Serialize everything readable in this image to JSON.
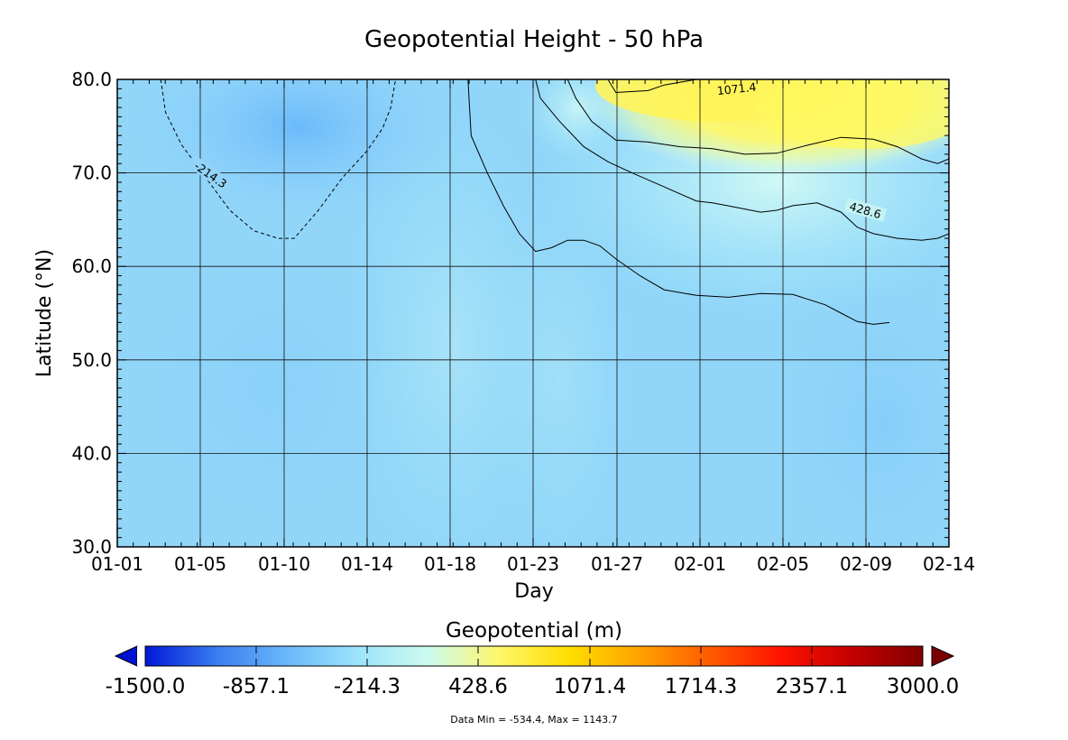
{
  "chart_data": {
    "type": "heatmap",
    "title": "Geopotential Height - 50 hPa",
    "xlabel": "Day",
    "ylabel": "Latitude (°N)",
    "x_ticks": [
      "01-01",
      "01-05",
      "01-10",
      "01-14",
      "01-18",
      "01-23",
      "01-27",
      "02-01",
      "02-05",
      "02-09",
      "02-14"
    ],
    "x_range": [
      "01-01",
      "02-14"
    ],
    "y_ticks": [
      "30.0",
      "40.0",
      "50.0",
      "60.0",
      "70.0",
      "80.0"
    ],
    "ylim": [
      30,
      80
    ],
    "grid": true,
    "colorbar": {
      "label": "Geopotential (m)",
      "min": -1500,
      "max": 3000,
      "ticks": [
        "-1500.0",
        "-857.1",
        "-214.3",
        "428.6",
        "1071.4",
        "1714.3",
        "2357.1",
        "3000.0"
      ],
      "extend": "both",
      "colors": [
        "#0018d8",
        "#3a7cf0",
        "#6ab8fa",
        "#9be4fb",
        "#ccfbef",
        "#fff66a",
        "#ffde00",
        "#ffa200",
        "#ff5a00",
        "#ff1200",
        "#c30000",
        "#820000"
      ]
    },
    "contours": [
      {
        "level": "-214.3",
        "style": "dashed",
        "points": [
          [
            2.7,
            80
          ],
          [
            3.0,
            76.5
          ],
          [
            4.0,
            73.0
          ],
          [
            5.5,
            69.5
          ],
          [
            7.0,
            66.0
          ],
          [
            8.5,
            63.8
          ],
          [
            10.0,
            63.0
          ],
          [
            11.0,
            63.0
          ],
          [
            12.5,
            66.0
          ],
          [
            14.0,
            69.5
          ],
          [
            15.5,
            72.3
          ],
          [
            16.5,
            74.8
          ],
          [
            17.0,
            77.0
          ],
          [
            17.3,
            80.0
          ]
        ]
      },
      {
        "level": "428.6",
        "style": "solid",
        "points": [
          [
            21.8,
            80
          ],
          [
            22.0,
            74.0
          ],
          [
            23.0,
            70.0
          ],
          [
            24.0,
            66.5
          ],
          [
            25.0,
            63.5
          ],
          [
            26.0,
            61.6
          ],
          [
            27.0,
            62.0
          ],
          [
            28.0,
            62.8
          ],
          [
            29.0,
            62.8
          ],
          [
            30.0,
            62.2
          ],
          [
            31.0,
            60.8
          ],
          [
            32.5,
            59.0
          ],
          [
            34.0,
            57.5
          ],
          [
            36.0,
            56.9
          ],
          [
            38.0,
            56.7
          ],
          [
            40.0,
            57.1
          ],
          [
            42.0,
            57.0
          ],
          [
            44.0,
            55.9
          ],
          [
            45.0,
            55.0
          ],
          [
            46.0,
            54.1
          ],
          [
            47.0,
            53.8
          ],
          [
            48.0,
            54.0
          ]
        ]
      },
      {
        "level": "428.6",
        "style": "solid",
        "points": [
          [
            26.0,
            80
          ],
          [
            26.3,
            78.0
          ],
          [
            27.5,
            75.5
          ],
          [
            29.0,
            72.8
          ],
          [
            30.5,
            71.2
          ],
          [
            32.0,
            70.0
          ],
          [
            34.0,
            68.5
          ],
          [
            36.0,
            67.0
          ],
          [
            37.0,
            66.8
          ],
          [
            38.5,
            66.3
          ],
          [
            40.0,
            65.8
          ],
          [
            41.0,
            66.0
          ],
          [
            42.0,
            66.5
          ],
          [
            43.5,
            66.8
          ],
          [
            45.0,
            65.8
          ],
          [
            46.0,
            64.2
          ],
          [
            47.0,
            63.5
          ],
          [
            48.5,
            63.0
          ],
          [
            50.0,
            62.8
          ],
          [
            51.0,
            63.0
          ],
          [
            51.7,
            63.5
          ]
        ]
      },
      {
        "level": "1071.4",
        "style": "solid",
        "points": [
          [
            28.0,
            80
          ],
          [
            28.5,
            78.0
          ],
          [
            29.5,
            75.5
          ],
          [
            31.0,
            73.5
          ],
          [
            33.0,
            73.3
          ],
          [
            35.0,
            72.8
          ],
          [
            37.0,
            72.6
          ],
          [
            39.0,
            72.0
          ],
          [
            41.0,
            72.1
          ],
          [
            43.0,
            73.0
          ],
          [
            45.0,
            73.8
          ],
          [
            47.0,
            73.6
          ],
          [
            48.5,
            72.8
          ],
          [
            50.0,
            71.5
          ],
          [
            51.0,
            71.0
          ],
          [
            51.7,
            71.5
          ]
        ]
      },
      {
        "level": "1071.4",
        "style": "solid",
        "points": [
          [
            30.5,
            80
          ],
          [
            31.0,
            78.6
          ],
          [
            33.0,
            78.8
          ],
          [
            34.0,
            79.4
          ],
          [
            36.0,
            80.0
          ]
        ]
      }
    ],
    "contour_labels": [
      {
        "text": "-214.3",
        "x": 5.8,
        "y": 69.8
      },
      {
        "text": "428.6",
        "x": 46.5,
        "y": 66.0
      },
      {
        "text": "1071.4",
        "x": 38.5,
        "y": 79.0
      }
    ],
    "stats": "Data Min = -534.4, Max = 1143.7"
  }
}
